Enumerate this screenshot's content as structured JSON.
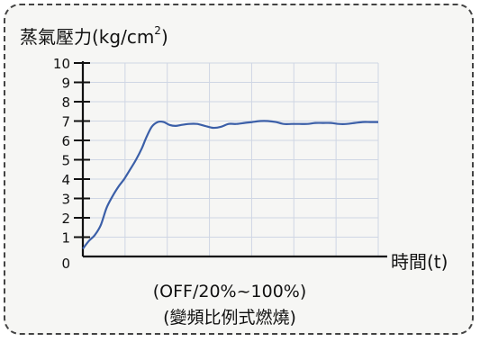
{
  "chart_data": {
    "type": "line",
    "ylabel": "蒸氣壓力(kg/cm",
    "ylabel_sup": "2",
    "ylabel_close": ")",
    "xlabel": "時間(t)",
    "caption_line1": "(OFF/20%~100%)",
    "caption_line2": "(變頻比例式燃燒)",
    "ylim": [
      0,
      10
    ],
    "yticks": [
      "0",
      "1",
      "2",
      "3",
      "4",
      "5",
      "6",
      "7",
      "8",
      "9",
      "10"
    ],
    "grid": true,
    "line_color": "#3b5fa8",
    "series": [
      {
        "x": [
          0,
          0.3,
          0.6,
          0.9,
          1.2,
          1.5,
          1.8,
          2.1,
          2.4,
          2.7,
          3.0,
          3.2,
          3.5,
          3.8,
          4.1,
          4.4,
          4.7,
          5.0,
          5.4,
          5.8,
          6.2,
          6.6,
          7.0,
          7.4,
          7.8,
          8.2,
          8.6,
          9.0,
          9.4,
          9.8,
          10.2,
          10.6,
          11.0,
          11.4,
          11.8,
          12.2,
          12.6,
          13.0,
          13.4,
          13.8,
          14.2,
          14.6,
          15.0
        ],
        "y": [
          0.4,
          0.8,
          1.1,
          1.6,
          2.5,
          3.1,
          3.6,
          4.0,
          4.5,
          5.0,
          5.6,
          6.1,
          6.7,
          6.95,
          6.95,
          6.8,
          6.75,
          6.8,
          6.85,
          6.85,
          6.75,
          6.65,
          6.7,
          6.85,
          6.85,
          6.9,
          6.95,
          7.0,
          7.0,
          6.95,
          6.85,
          6.85,
          6.85,
          6.85,
          6.9,
          6.9,
          6.9,
          6.85,
          6.85,
          6.9,
          6.95,
          6.95,
          6.95
        ]
      }
    ]
  }
}
